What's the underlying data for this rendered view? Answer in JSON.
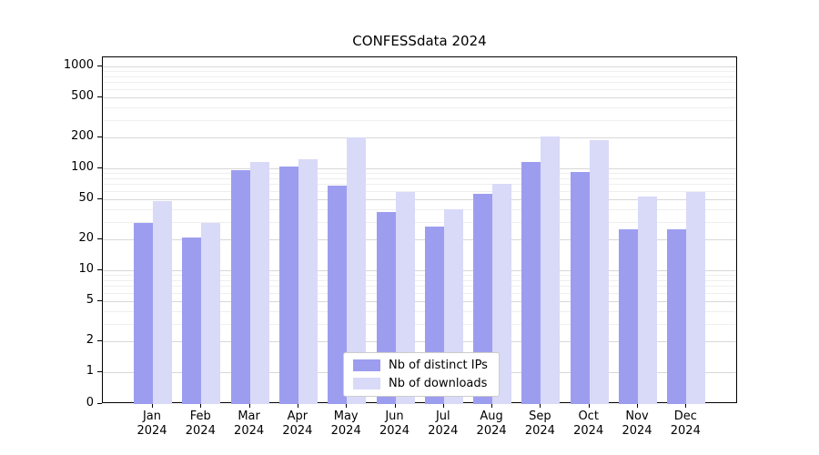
{
  "figure": {
    "background": "#ffffff"
  },
  "chart_data": {
    "type": "bar",
    "title": "CONFESSdata 2024",
    "categories": [
      "Jan 2024",
      "Feb 2024",
      "Mar 2024",
      "Apr 2024",
      "May 2024",
      "Jun 2024",
      "Jul 2024",
      "Aug 2024",
      "Sep 2024",
      "Oct 2024",
      "Nov 2024",
      "Dec 2024"
    ],
    "x_tick_months": [
      "Jan",
      "Feb",
      "Mar",
      "Apr",
      "May",
      "Jun",
      "Jul",
      "Aug",
      "Sep",
      "Oct",
      "Nov",
      "Dec"
    ],
    "x_tick_year": "2024",
    "series": [
      {
        "name": "Nb of distinct IPs",
        "color": "#9d9df0",
        "values": [
          29,
          21,
          95,
          105,
          68,
          37,
          27,
          56,
          115,
          92,
          25,
          25
        ]
      },
      {
        "name": "Nb of downloads",
        "color": "#d9d9f8",
        "values": [
          48,
          29,
          115,
          122,
          200,
          58,
          40,
          70,
          205,
          188,
          53,
          58
        ]
      }
    ],
    "xlabel": "",
    "ylabel": "",
    "yscale": "symlog",
    "yticks": [
      0,
      1,
      2,
      5,
      10,
      20,
      50,
      100,
      200,
      500,
      1000
    ],
    "ylim": [
      0,
      1400
    ],
    "grid": true,
    "legend_position": "lower center"
  }
}
